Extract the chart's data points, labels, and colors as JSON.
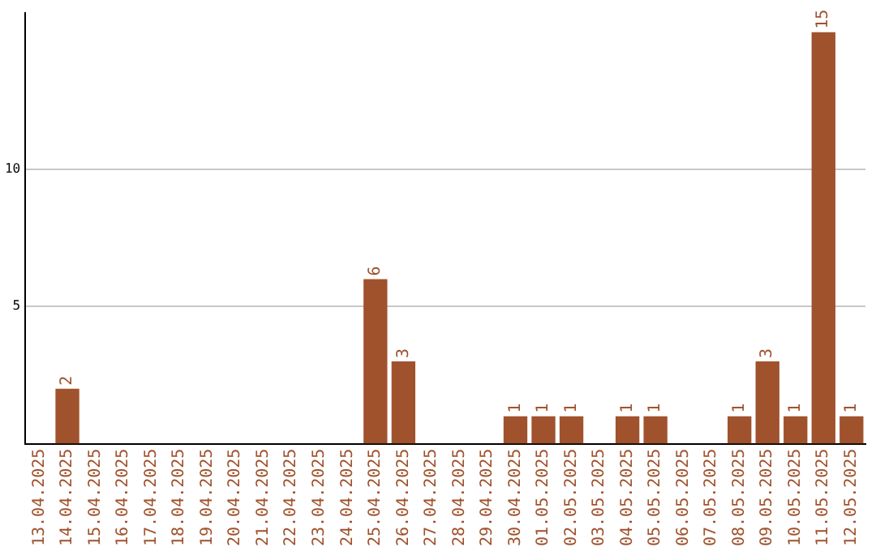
{
  "chart_data": {
    "type": "bar",
    "categories": [
      "13.04.2025",
      "14.04.2025",
      "15.04.2025",
      "16.04.2025",
      "17.04.2025",
      "18.04.2025",
      "19.04.2025",
      "20.04.2025",
      "21.04.2025",
      "22.04.2025",
      "23.04.2025",
      "24.04.2025",
      "25.04.2025",
      "26.04.2025",
      "27.04.2025",
      "28.04.2025",
      "29.04.2025",
      "30.04.2025",
      "01.05.2025",
      "02.05.2025",
      "03.05.2025",
      "04.05.2025",
      "05.05.2025",
      "06.05.2025",
      "07.05.2025",
      "08.05.2025",
      "09.05.2025",
      "10.05.2025",
      "11.05.2025",
      "12.05.2025"
    ],
    "values": [
      0,
      2,
      0,
      0,
      0,
      0,
      0,
      0,
      0,
      0,
      0,
      0,
      6,
      3,
      0,
      0,
      0,
      1,
      1,
      1,
      0,
      1,
      1,
      0,
      0,
      1,
      3,
      1,
      15,
      1
    ],
    "value_labels": [
      null,
      "2",
      null,
      null,
      null,
      null,
      null,
      null,
      null,
      null,
      null,
      null,
      "6",
      "3",
      null,
      null,
      null,
      "1",
      "1",
      "1",
      null,
      "1",
      "1",
      null,
      null,
      "1",
      "3",
      "1",
      "15",
      "1"
    ],
    "color": "#a0522d",
    "ylim": [
      0,
      15.7
    ],
    "yticks": [
      5,
      10
    ],
    "grid": "y"
  }
}
